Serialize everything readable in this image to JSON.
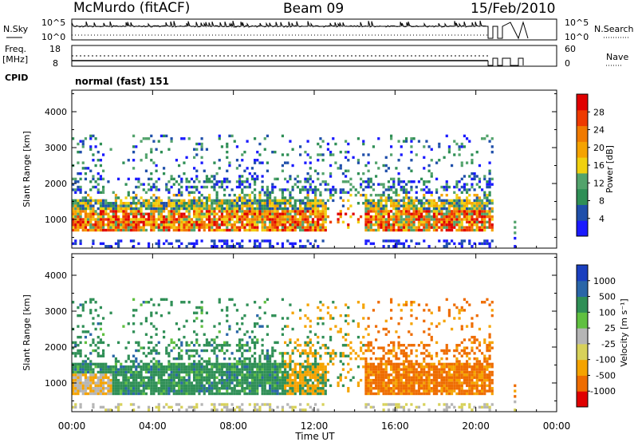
{
  "header": {
    "station": "McMurdo (fitACF)",
    "beam": "Beam 09",
    "date": "15/Feb/2010"
  },
  "top_panel": {
    "left_label": "N.Sky",
    "left_top_tick": "10^5",
    "left_bottom_tick": "10^0",
    "right_top_tick": "10^5",
    "right_bottom_tick": "10^0",
    "right_label": "N.Search"
  },
  "freq_panel": {
    "left_label_line1": "Freq.",
    "left_label_line2": "[MHz]",
    "left_top_tick": "18",
    "left_bottom_tick": "8",
    "right_top_tick": "60",
    "right_bottom_tick": "0",
    "right_label": "Nave"
  },
  "cpid": {
    "label": "CPID",
    "value": "normal (fast) 151"
  },
  "colors": {
    "scale": [
      "#1a1aff",
      "#1f4faa",
      "#2f8f56",
      "#53a36c",
      "#f0d010",
      "#f5a300",
      "#f07a00",
      "#ee3a00",
      "#e00000"
    ],
    "velocity_scale": [
      "#1a3fbf",
      "#2a66a8",
      "#2f8f56",
      "#60c040",
      "#b5b5b5",
      "#d7d15a",
      "#f5a300",
      "#ee6c00",
      "#e00000"
    ]
  },
  "chart_data": [
    {
      "type": "heatmap",
      "name": "power",
      "ylabel": "Slant Range [km]",
      "yticks": [
        "1000",
        "2000",
        "3000",
        "4000"
      ],
      "ylim": [
        200,
        4600
      ],
      "xlim": [
        "00:00",
        "24:00"
      ],
      "colorbar_label": "Power [dB]",
      "colorbar_ticks": [
        "4",
        "8",
        "12",
        "16",
        "20",
        "24",
        "28"
      ],
      "echo_region_note": "scatter 00:00–21:00 UT, strongest near 700–1500 km"
    },
    {
      "type": "heatmap",
      "name": "velocity",
      "ylabel": "Slant Range [km]",
      "yticks": [
        "1000",
        "2000",
        "3000",
        "4000"
      ],
      "ylim": [
        200,
        4600
      ],
      "xlim": [
        "00:00",
        "24:00"
      ],
      "colorbar_label": "Velocity [m s⁻¹]",
      "colorbar_ticks": [
        "1000",
        "500",
        "100",
        "25",
        "-25",
        "-100",
        "-500",
        "-1000"
      ]
    }
  ],
  "xaxis": {
    "ticks": [
      "00:00",
      "04:00",
      "08:00",
      "12:00",
      "16:00",
      "20:00",
      "00:00"
    ],
    "label": "Time UT"
  }
}
